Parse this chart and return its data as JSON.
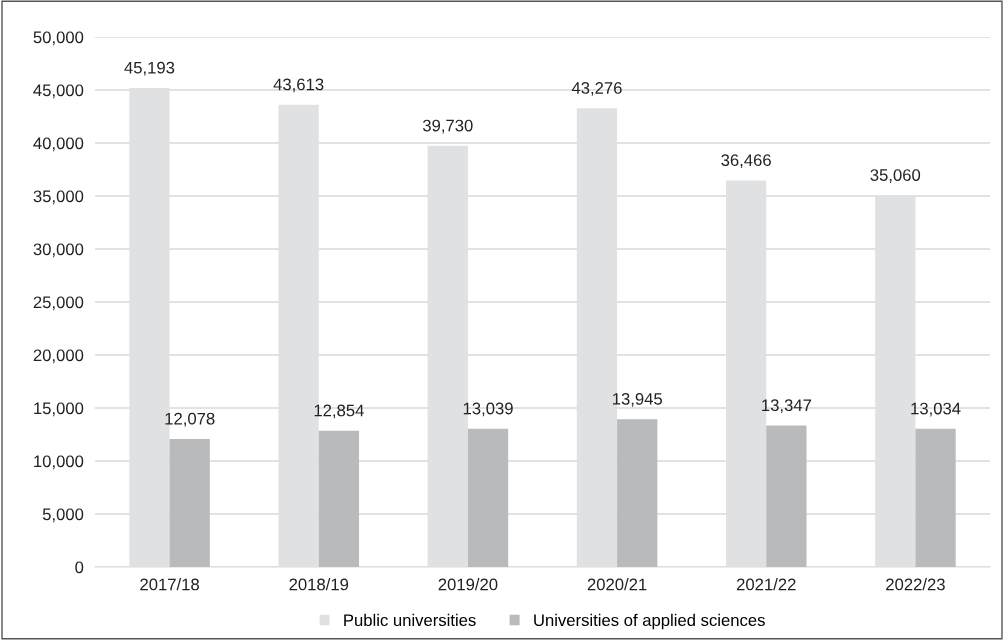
{
  "chart_data": {
    "type": "bar",
    "categories": [
      "2017/18",
      "2018/19",
      "2019/20",
      "2020/21",
      "2021/22",
      "2022/23"
    ],
    "series": [
      {
        "name": "Public universities",
        "color": "#e0e1e2",
        "values": [
          45193,
          43613,
          39730,
          43276,
          36466,
          35060
        ],
        "value_labels": [
          "45,193",
          "43,613",
          "39,730",
          "43,276",
          "36,466",
          "35,060"
        ]
      },
      {
        "name": "Universities of applied sciences",
        "color": "#b9babc",
        "values": [
          12078,
          12854,
          13039,
          13945,
          13347,
          13034
        ],
        "value_labels": [
          "12,078",
          "12,854",
          "13,039",
          "13,945",
          "13,347",
          "13,034"
        ]
      }
    ],
    "ylim": [
      0,
      50000
    ],
    "yticks": [
      {
        "value": 0,
        "label": "0"
      },
      {
        "value": 5000,
        "label": "5,000"
      },
      {
        "value": 10000,
        "label": "10,000"
      },
      {
        "value": 15000,
        "label": "15,000"
      },
      {
        "value": 20000,
        "label": "20,000"
      },
      {
        "value": 25000,
        "label": "25,000"
      },
      {
        "value": 30000,
        "label": "30,000"
      },
      {
        "value": 35000,
        "label": "35,000"
      },
      {
        "value": 40000,
        "label": "40,000"
      },
      {
        "value": 45000,
        "label": "45,000"
      },
      {
        "value": 50000,
        "label": "50,000"
      }
    ],
    "grid": "y",
    "legend": "bottom"
  }
}
